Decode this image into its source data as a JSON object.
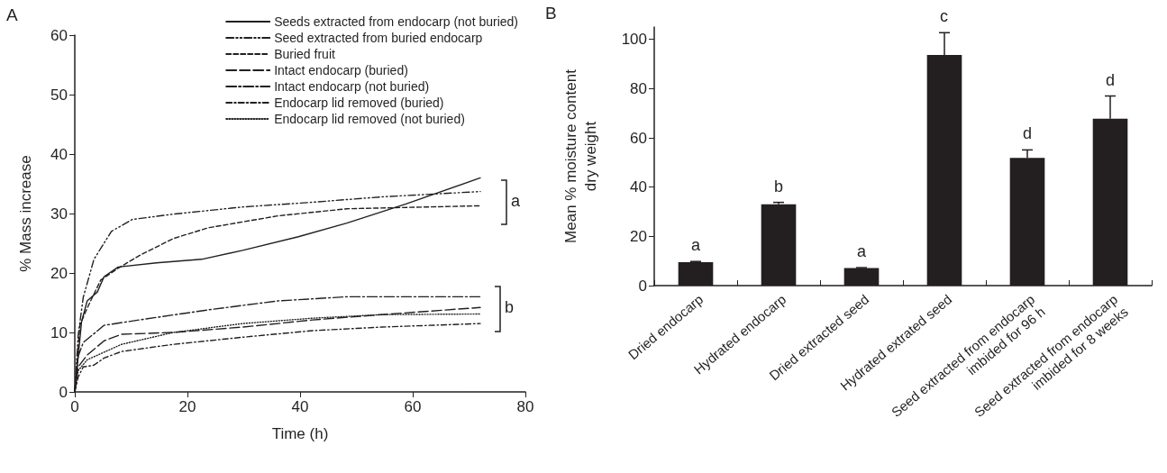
{
  "chart_data": [
    {
      "type": "line",
      "title": "A",
      "xlabel": "Time (h)",
      "ylabel": "% Mass increase",
      "xlim": [
        0,
        80
      ],
      "xticks": [
        0,
        20,
        40,
        60,
        80
      ],
      "ylim": [
        0,
        60
      ],
      "yticks": [
        0,
        10,
        20,
        30,
        40,
        50,
        60
      ],
      "legend": "top right",
      "marker": "none",
      "annotations": [
        "a",
        "b"
      ],
      "series": [
        {
          "name": "Seeds extracted from endocarp (not buried)",
          "color": "#231f20",
          "line_style": "solid",
          "x": [
            0,
            1.2,
            2.2,
            4,
            5.2,
            7.7,
            14.5,
            22.5,
            29.8,
            39.7,
            48.3,
            58.8,
            72
          ],
          "values": [
            0,
            11.8,
            15.3,
            16.8,
            19.4,
            21,
            21.7,
            22.3,
            23.8,
            26.1,
            28.4,
            31.6,
            36
          ]
        },
        {
          "name": "Seed extracted from buried endocarp",
          "color": "#231f20",
          "line_style": "dashdotdot",
          "x": [
            0,
            0.6,
            1.5,
            3.4,
            6.5,
            10.2,
            17.5,
            29.8,
            42.2,
            54.5,
            72
          ],
          "values": [
            0,
            9.5,
            15.9,
            22.3,
            27,
            29,
            29.9,
            31.1,
            31.9,
            32.8,
            33.7
          ]
        },
        {
          "name": "Buried fruit",
          "color": "#231f20",
          "line_style": "dashed",
          "x": [
            0,
            0.9,
            2.2,
            4.6,
            7.7,
            11.4,
            17.5,
            23.7,
            36,
            48.3,
            72
          ],
          "values": [
            0,
            11.2,
            14.1,
            18.8,
            20.8,
            22.9,
            25.8,
            27.6,
            29.6,
            30.8,
            31.3
          ]
        },
        {
          "name": "Intact endocarp (buried)",
          "color": "#231f20",
          "line_style": "longdash",
          "x": [
            0,
            0.6,
            2.2,
            5.2,
            8.3,
            17.5,
            29.8,
            42.2,
            54.5,
            72
          ],
          "values": [
            0,
            4.2,
            6.2,
            8.6,
            9.7,
            10,
            10.9,
            12.1,
            13,
            14.2
          ]
        },
        {
          "name": "Intact endocarp (not buried)",
          "color": "#231f20",
          "line_style": "longdashdot",
          "x": [
            0,
            0.6,
            1.5,
            5.2,
            11.4,
            23.7,
            36,
            48.3,
            72
          ],
          "values": [
            0,
            6,
            8.3,
            11.2,
            12.1,
            13.8,
            15.3,
            16,
            16
          ]
        },
        {
          "name": "Endocarp lid removed (buried)",
          "color": "#231f20",
          "line_style": "dashdot",
          "x": [
            0,
            0.6,
            1.5,
            3.4,
            5.2,
            8.3,
            17.5,
            29.8,
            42.2,
            54.5,
            72
          ],
          "values": [
            0,
            2.5,
            4.2,
            4.5,
            5.7,
            6.8,
            8,
            9.2,
            10.3,
            10.9,
            11.5
          ]
        },
        {
          "name": "Endocarp lid removed (not buried)",
          "color": "#231f20",
          "line_style": "dotted",
          "x": [
            0,
            0.6,
            2.2,
            8.3,
            17.5,
            29.8,
            42.2,
            54.5,
            72
          ],
          "values": [
            0,
            3.6,
            5.4,
            8,
            10,
            11.5,
            12.4,
            13,
            13.1
          ]
        }
      ]
    },
    {
      "type": "bar",
      "title": "B",
      "ylabel": "Mean % moisture content\ndry weight",
      "ylim": [
        0,
        105
      ],
      "yticks": [
        0,
        20,
        40,
        60,
        80,
        100
      ],
      "color": "#231f20",
      "categories": [
        "Dried endocarp",
        "Hydrated endocarp",
        "Dried extracted seed",
        "Hydrated extrated seed",
        "Seed extracted from endocarp\nimbided for 96 h",
        "Seed extracted from endocarp\nimbided for 8 weeks"
      ],
      "values": [
        9.5,
        33,
        7.1,
        93.7,
        51.9,
        67.8
      ],
      "errors": [
        [
          9.5,
          9.8
        ],
        [
          33,
          33.8
        ],
        [
          7.1,
          7.3
        ],
        [
          93.7,
          102.7
        ],
        [
          51.9,
          55.1
        ],
        [
          67.8,
          77
        ]
      ],
      "annotations": [
        "a",
        "b",
        "a",
        "c",
        "d",
        "d"
      ]
    }
  ]
}
